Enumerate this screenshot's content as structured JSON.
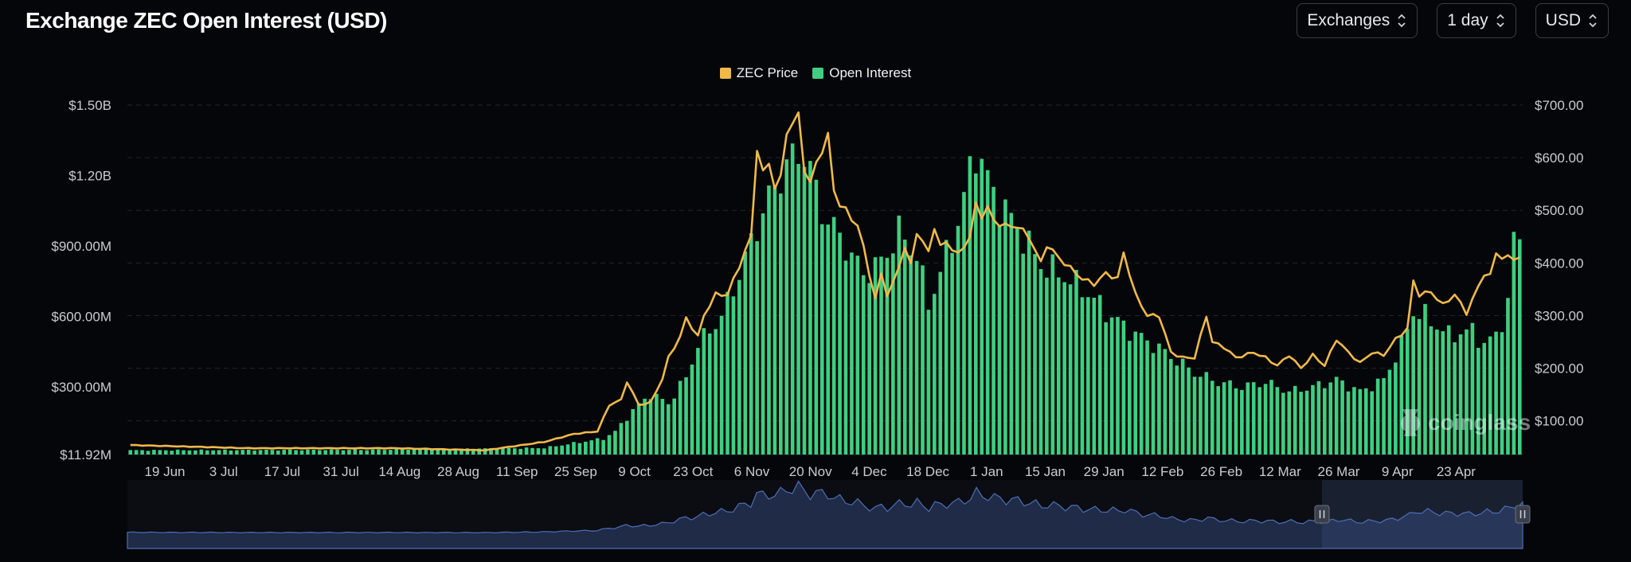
{
  "header": {
    "title": "Exchange ZEC Open Interest (USD)",
    "selects": [
      {
        "label": "Exchanges",
        "name": "exchanges-select"
      },
      {
        "label": "1 day",
        "name": "interval-select"
      },
      {
        "label": "USD",
        "name": "currency-select"
      }
    ]
  },
  "legend": [
    {
      "label": "ZEC Price",
      "color": "#f0b94a"
    },
    {
      "label": "Open Interest",
      "color": "#3ecf80"
    }
  ],
  "watermark": "coinglass",
  "chart_data": {
    "type": "bar+line",
    "x_ticks": [
      "19 Jun",
      "3 Jul",
      "17 Jul",
      "31 Jul",
      "14 Aug",
      "28 Aug",
      "11 Sep",
      "25 Sep",
      "9 Oct",
      "23 Oct",
      "6 Nov",
      "20 Nov",
      "4 Dec",
      "18 Dec",
      "1 Jan",
      "15 Jan",
      "29 Jan",
      "12 Feb",
      "26 Feb",
      "12 Mar",
      "26 Mar",
      "9 Apr",
      "23 Apr"
    ],
    "left_axis": {
      "ticks": [
        "$11.92M",
        "$300.00M",
        "$600.00M",
        "$900.00M",
        "$1.20B",
        "$1.50B"
      ],
      "range": [
        11.92,
        1500
      ],
      "unit": "USD millions"
    },
    "right_axis": {
      "ticks": [
        "$100.00",
        "$200.00",
        "$300.00",
        "$400.00",
        "$500.00",
        "$600.00",
        "$700.00"
      ],
      "range": [
        36,
        700
      ],
      "unit": "USD"
    },
    "grid": true,
    "legend_position": "top-center",
    "series": [
      {
        "name": "Open Interest",
        "axis": "left",
        "type": "bar",
        "keypoints": [
          [
            0,
            30
          ],
          [
            40,
            32
          ],
          [
            70,
            40
          ],
          [
            80,
            80
          ],
          [
            82,
            110
          ],
          [
            85,
            200
          ],
          [
            88,
            270
          ],
          [
            91,
            230
          ],
          [
            94,
            340
          ],
          [
            96,
            480
          ],
          [
            100,
            600
          ],
          [
            103,
            780
          ],
          [
            107,
            1050
          ],
          [
            111,
            1250
          ],
          [
            114,
            1300
          ],
          [
            117,
            1050
          ],
          [
            121,
            900
          ],
          [
            124,
            780
          ],
          [
            127,
            830
          ],
          [
            130,
            960
          ],
          [
            133,
            860
          ],
          [
            135,
            650
          ],
          [
            140,
            1000
          ],
          [
            143,
            1320
          ],
          [
            146,
            1120
          ],
          [
            150,
            980
          ],
          [
            154,
            820
          ],
          [
            158,
            770
          ],
          [
            162,
            700
          ],
          [
            165,
            620
          ],
          [
            169,
            540
          ],
          [
            173,
            480
          ],
          [
            176,
            430
          ],
          [
            180,
            360
          ],
          [
            184,
            320
          ],
          [
            188,
            300
          ],
          [
            192,
            320
          ],
          [
            196,
            280
          ],
          [
            200,
            300
          ],
          [
            204,
            330
          ],
          [
            208,
            280
          ],
          [
            212,
            330
          ],
          [
            215,
            480
          ],
          [
            217,
            620
          ],
          [
            219,
            600
          ],
          [
            223,
            520
          ],
          [
            227,
            540
          ],
          [
            229,
            480
          ],
          [
            231,
            520
          ],
          [
            233,
            650
          ],
          [
            234,
            935
          ],
          [
            235,
            930
          ]
        ]
      },
      {
        "name": "ZEC Price",
        "axis": "right",
        "type": "line",
        "keypoints": [
          [
            0,
            54
          ],
          [
            20,
            48
          ],
          [
            45,
            48
          ],
          [
            60,
            44
          ],
          [
            70,
            60
          ],
          [
            75,
            75
          ],
          [
            79,
            80
          ],
          [
            81,
            130
          ],
          [
            83,
            140
          ],
          [
            84,
            175
          ],
          [
            86,
            130
          ],
          [
            88,
            135
          ],
          [
            90,
            180
          ],
          [
            91,
            220
          ],
          [
            93,
            260
          ],
          [
            94,
            295
          ],
          [
            96,
            260
          ],
          [
            97,
            300
          ],
          [
            99,
            340
          ],
          [
            101,
            340
          ],
          [
            103,
            395
          ],
          [
            105,
            450
          ],
          [
            106,
            620
          ],
          [
            107,
            570
          ],
          [
            108,
            590
          ],
          [
            109,
            545
          ],
          [
            110,
            560
          ],
          [
            111,
            650
          ],
          [
            113,
            680
          ],
          [
            114,
            580
          ],
          [
            115,
            550
          ],
          [
            116,
            590
          ],
          [
            118,
            640
          ],
          [
            119,
            540
          ],
          [
            120,
            510
          ],
          [
            121,
            500
          ],
          [
            123,
            470
          ],
          [
            124,
            430
          ],
          [
            125,
            380
          ],
          [
            126,
            330
          ],
          [
            127,
            380
          ],
          [
            128,
            340
          ],
          [
            129,
            360
          ],
          [
            131,
            430
          ],
          [
            132,
            395
          ],
          [
            133,
            460
          ],
          [
            135,
            420
          ],
          [
            136,
            470
          ],
          [
            137,
            430
          ],
          [
            138,
            440
          ],
          [
            140,
            415
          ],
          [
            142,
            450
          ],
          [
            143,
            510
          ],
          [
            144,
            490
          ],
          [
            145,
            505
          ],
          [
            146,
            480
          ],
          [
            148,
            470
          ],
          [
            150,
            470
          ],
          [
            152,
            450
          ],
          [
            154,
            400
          ],
          [
            155,
            435
          ],
          [
            157,
            410
          ],
          [
            159,
            390
          ],
          [
            161,
            370
          ],
          [
            163,
            360
          ],
          [
            165,
            380
          ],
          [
            167,
            370
          ],
          [
            168,
            420
          ],
          [
            170,
            340
          ],
          [
            172,
            300
          ],
          [
            174,
            300
          ],
          [
            176,
            230
          ],
          [
            178,
            220
          ],
          [
            180,
            220
          ],
          [
            182,
            300
          ],
          [
            183,
            250
          ],
          [
            185,
            240
          ],
          [
            187,
            220
          ],
          [
            190,
            230
          ],
          [
            192,
            220
          ],
          [
            194,
            205
          ],
          [
            196,
            225
          ],
          [
            198,
            200
          ],
          [
            200,
            225
          ],
          [
            202,
            205
          ],
          [
            204,
            255
          ],
          [
            206,
            230
          ],
          [
            208,
            210
          ],
          [
            210,
            230
          ],
          [
            212,
            225
          ],
          [
            214,
            255
          ],
          [
            216,
            275
          ],
          [
            217,
            365
          ],
          [
            218,
            340
          ],
          [
            220,
            345
          ],
          [
            222,
            320
          ],
          [
            224,
            340
          ],
          [
            226,
            305
          ],
          [
            227,
            330
          ],
          [
            229,
            380
          ],
          [
            230,
            375
          ],
          [
            231,
            420
          ],
          [
            232,
            410
          ]
        ]
      }
    ]
  }
}
